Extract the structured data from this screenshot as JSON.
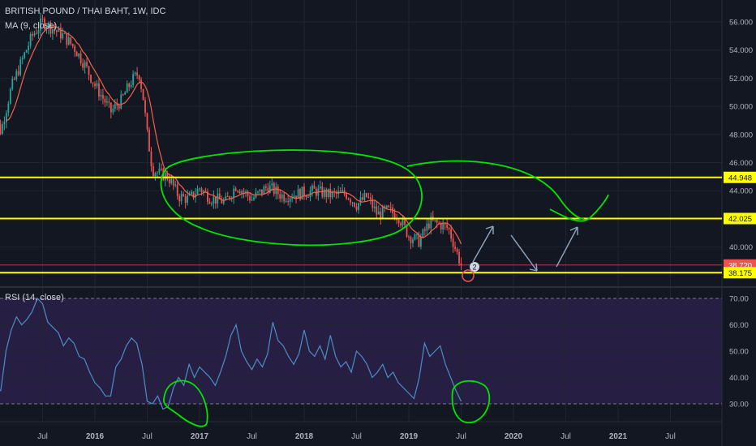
{
  "header": {
    "title": "BRITISH POUND / THAI BAHT, 1W, IDC",
    "ma_legend": "MA (9, close)",
    "rsi_legend": "RSI (14, close)"
  },
  "colors": {
    "background": "#131722",
    "up": "#26a69a",
    "down": "#ef5350",
    "ma_line": "#f0624d",
    "rsi_line": "#4c8ec4",
    "rsi_band": "#2a1f47",
    "level_line": "#ffff00",
    "annotation_green": "#00e600",
    "annotation_arrow": "#8fa7be",
    "price_tag_bg": "#ffff00",
    "last_price_bg": "#ef5350"
  },
  "chart_data": [
    {
      "type": "candlestick",
      "title": "BRITISH POUND / THAI BAHT, 1W, IDC",
      "x_tick_labels": [
        "Jul",
        "2016",
        "Jul",
        "2017",
        "Jul",
        "2018",
        "Jul",
        "2019",
        "Jul",
        "2020",
        "Jul",
        "2021",
        "Jul"
      ],
      "y_tick_labels": [
        "56.000",
        "54.000",
        "52.000",
        "50.000",
        "48.000",
        "46.000",
        "44.000",
        "42.000",
        "40.000"
      ],
      "ylim": [
        37.5,
        56.6
      ],
      "price_path": [
        [
          2015.0,
          50.0
        ],
        [
          2015.1,
          48.2
        ],
        [
          2015.2,
          51.3
        ],
        [
          2015.3,
          53.2
        ],
        [
          2015.4,
          55.0
        ],
        [
          2015.5,
          56.0
        ],
        [
          2015.6,
          55.5
        ],
        [
          2015.7,
          55.0
        ],
        [
          2015.8,
          54.2
        ],
        [
          2015.9,
          53.0
        ],
        [
          2016.0,
          51.5
        ],
        [
          2016.1,
          50.3
        ],
        [
          2016.15,
          49.6
        ],
        [
          2016.25,
          50.4
        ],
        [
          2016.35,
          51.8
        ],
        [
          2016.42,
          52.4
        ],
        [
          2016.46,
          50.7
        ],
        [
          2016.5,
          48.0
        ],
        [
          2016.55,
          45.5
        ],
        [
          2016.62,
          45.2
        ],
        [
          2016.7,
          45.0
        ],
        [
          2016.8,
          43.6
        ],
        [
          2016.9,
          43.4
        ],
        [
          2017.0,
          44.2
        ],
        [
          2017.1,
          43.5
        ],
        [
          2017.25,
          43.2
        ],
        [
          2017.35,
          44.4
        ],
        [
          2017.5,
          43.4
        ],
        [
          2017.65,
          44.3
        ],
        [
          2017.8,
          43.6
        ],
        [
          2017.95,
          43.8
        ],
        [
          2018.1,
          44.0
        ],
        [
          2018.25,
          43.7
        ],
        [
          2018.4,
          43.8
        ],
        [
          2018.5,
          43.0
        ],
        [
          2018.6,
          43.6
        ],
        [
          2018.7,
          42.3
        ],
        [
          2018.8,
          42.6
        ],
        [
          2018.9,
          42.2
        ],
        [
          2019.0,
          40.8
        ],
        [
          2019.1,
          40.4
        ],
        [
          2019.2,
          41.8
        ],
        [
          2019.3,
          41.6
        ],
        [
          2019.38,
          41.3
        ],
        [
          2019.44,
          40.0
        ],
        [
          2019.5,
          38.72
        ]
      ],
      "series": [
        {
          "name": "MA (9, close)"
        }
      ],
      "last_price": 38.72,
      "levels": [
        44.948,
        42.025,
        38.175
      ],
      "price_labels": [
        "44.948",
        "42.025",
        "38.720",
        "38.175"
      ],
      "annotations": [
        "2"
      ]
    },
    {
      "type": "line",
      "title": "RSI (14, close)",
      "ylim": [
        22,
        72
      ],
      "y_tick_labels": [
        "70.00",
        "60.00",
        "50.00",
        "40.00",
        "30.00"
      ],
      "bands": [
        30,
        70
      ],
      "series": [
        {
          "name": "RSI (14, close)",
          "points": [
            [
              2015.0,
              33
            ],
            [
              2015.05,
              36
            ],
            [
              2015.1,
              35
            ],
            [
              2015.15,
              50
            ],
            [
              2015.2,
              58
            ],
            [
              2015.25,
              63
            ],
            [
              2015.3,
              60
            ],
            [
              2015.35,
              62
            ],
            [
              2015.4,
              65
            ],
            [
              2015.45,
              70
            ],
            [
              2015.5,
              68
            ],
            [
              2015.55,
              61
            ],
            [
              2015.6,
              59
            ],
            [
              2015.65,
              57
            ],
            [
              2015.7,
              52
            ],
            [
              2015.75,
              55
            ],
            [
              2015.8,
              53
            ],
            [
              2015.85,
              48
            ],
            [
              2015.9,
              47
            ],
            [
              2015.95,
              42
            ],
            [
              2016.0,
              38
            ],
            [
              2016.05,
              36
            ],
            [
              2016.1,
              33
            ],
            [
              2016.15,
              33
            ],
            [
              2016.2,
              44
            ],
            [
              2016.25,
              47
            ],
            [
              2016.3,
              52
            ],
            [
              2016.35,
              55
            ],
            [
              2016.4,
              53
            ],
            [
              2016.45,
              45
            ],
            [
              2016.5,
              31
            ],
            [
              2016.55,
              30
            ],
            [
              2016.6,
              33
            ],
            [
              2016.65,
              28
            ],
            [
              2016.7,
              29
            ],
            [
              2016.75,
              36
            ],
            [
              2016.8,
              40
            ],
            [
              2016.85,
              37
            ],
            [
              2016.9,
              45
            ],
            [
              2016.95,
              40
            ],
            [
              2017.0,
              44
            ],
            [
              2017.05,
              42
            ],
            [
              2017.1,
              40
            ],
            [
              2017.15,
              37
            ],
            [
              2017.2,
              42
            ],
            [
              2017.25,
              48
            ],
            [
              2017.3,
              56
            ],
            [
              2017.35,
              60
            ],
            [
              2017.4,
              50
            ],
            [
              2017.45,
              46
            ],
            [
              2017.5,
              43
            ],
            [
              2017.55,
              47
            ],
            [
              2017.6,
              44
            ],
            [
              2017.65,
              49
            ],
            [
              2017.7,
              61
            ],
            [
              2017.75,
              54
            ],
            [
              2017.8,
              52
            ],
            [
              2017.85,
              48
            ],
            [
              2017.9,
              45
            ],
            [
              2017.95,
              49
            ],
            [
              2018.0,
              58
            ],
            [
              2018.05,
              50
            ],
            [
              2018.1,
              48
            ],
            [
              2018.15,
              52
            ],
            [
              2018.2,
              47
            ],
            [
              2018.25,
              56
            ],
            [
              2018.3,
              48
            ],
            [
              2018.35,
              44
            ],
            [
              2018.4,
              46
            ],
            [
              2018.45,
              42
            ],
            [
              2018.5,
              50
            ],
            [
              2018.55,
              48
            ],
            [
              2018.6,
              45
            ],
            [
              2018.65,
              40
            ],
            [
              2018.7,
              42
            ],
            [
              2018.75,
              45
            ],
            [
              2018.8,
              40
            ],
            [
              2018.85,
              42
            ],
            [
              2018.9,
              38
            ],
            [
              2018.95,
              36
            ],
            [
              2019.0,
              34
            ],
            [
              2019.05,
              32
            ],
            [
              2019.1,
              40
            ],
            [
              2019.15,
              53
            ],
            [
              2019.2,
              48
            ],
            [
              2019.25,
              50
            ],
            [
              2019.3,
              52
            ],
            [
              2019.35,
              45
            ],
            [
              2019.4,
              40
            ],
            [
              2019.45,
              35
            ],
            [
              2019.5,
              31
            ]
          ]
        }
      ]
    }
  ]
}
